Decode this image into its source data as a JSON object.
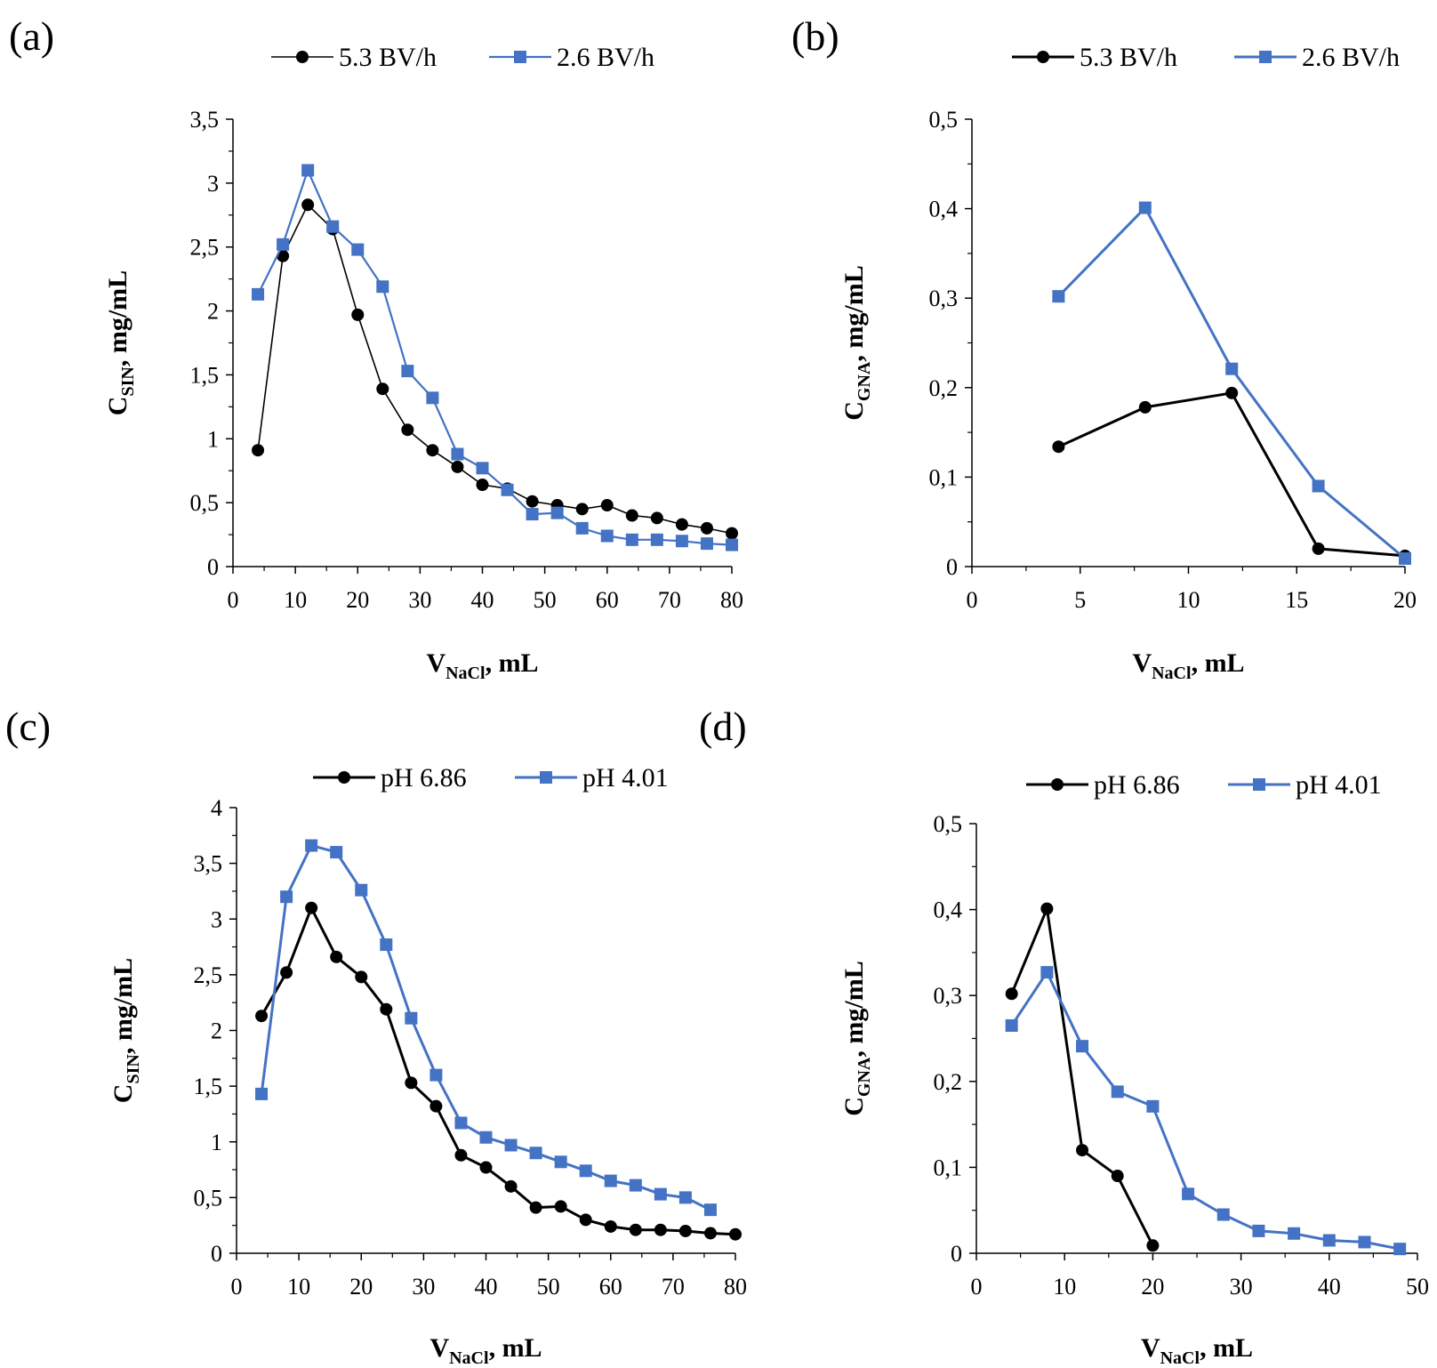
{
  "chart_data": [
    {
      "id": "a",
      "type": "line",
      "panel_label": "(a)",
      "xlabel": "V",
      "xlabel_sub": "NaCl",
      "xlabel_suffix": ", mL",
      "ylabel": "C",
      "ylabel_sub": "SIN",
      "ylabel_suffix": ", mg/mL",
      "xlim": [
        0,
        80
      ],
      "ylim": [
        0,
        3.5
      ],
      "xticks": [
        0,
        10,
        20,
        30,
        40,
        50,
        60,
        70,
        80
      ],
      "xtick_labels": [
        "0",
        "10",
        "20",
        "30",
        "40",
        "50",
        "60",
        "70",
        "80"
      ],
      "yticks": [
        0,
        0.5,
        1,
        1.5,
        2,
        2.5,
        3,
        3.5
      ],
      "ytick_labels": [
        "0",
        "0,5",
        "1",
        "1,5",
        "2",
        "2,5",
        "3",
        "3,5"
      ],
      "legend_position": "top",
      "series": [
        {
          "name": "5.3 BV/h",
          "color": "#000000",
          "marker": "circle",
          "x": [
            4,
            8,
            12,
            16,
            20,
            24,
            28,
            32,
            36,
            40,
            44,
            48,
            52,
            56,
            60,
            64,
            68,
            72,
            76,
            80
          ],
          "y": [
            0.91,
            2.43,
            2.83,
            2.64,
            1.97,
            1.39,
            1.07,
            0.91,
            0.78,
            0.64,
            0.61,
            0.51,
            0.48,
            0.45,
            0.48,
            0.4,
            0.38,
            0.33,
            0.3,
            0.26
          ]
        },
        {
          "name": "2.6 BV/h",
          "color": "#4472c4",
          "marker": "square",
          "x": [
            4,
            8,
            12,
            16,
            20,
            24,
            28,
            32,
            36,
            40,
            44,
            48,
            52,
            56,
            60,
            64,
            68,
            72,
            76,
            80
          ],
          "y": [
            2.13,
            2.52,
            3.1,
            2.66,
            2.48,
            2.19,
            1.53,
            1.32,
            0.88,
            0.77,
            0.6,
            0.41,
            0.42,
            0.3,
            0.24,
            0.21,
            0.21,
            0.2,
            0.18,
            0.17
          ]
        }
      ]
    },
    {
      "id": "b",
      "type": "line",
      "panel_label": "(b)",
      "xlabel": "V",
      "xlabel_sub": "NaCl",
      "xlabel_suffix": ", mL",
      "ylabel": "C",
      "ylabel_sub": "GNA",
      "ylabel_suffix": ", mg/mL",
      "xlim": [
        0,
        20
      ],
      "ylim": [
        0,
        0.5
      ],
      "xticks": [
        0,
        5,
        10,
        15,
        20
      ],
      "xtick_labels": [
        "0",
        "5",
        "10",
        "15",
        "20"
      ],
      "yticks": [
        0,
        0.1,
        0.2,
        0.3,
        0.4,
        0.5
      ],
      "ytick_labels": [
        "0",
        "0,1",
        "0,2",
        "0,3",
        "0,4",
        "0,5"
      ],
      "legend_position": "top",
      "series": [
        {
          "name": "5.3 BV/h",
          "color": "#000000",
          "marker": "circle",
          "x": [
            4,
            8,
            12,
            16,
            20
          ],
          "y": [
            0.134,
            0.178,
            0.194,
            0.02,
            0.012
          ]
        },
        {
          "name": "2.6 BV/h",
          "color": "#4472c4",
          "marker": "square",
          "x": [
            4,
            8,
            12,
            16,
            20
          ],
          "y": [
            0.302,
            0.401,
            0.221,
            0.09,
            0.009
          ]
        }
      ]
    },
    {
      "id": "c",
      "type": "line",
      "panel_label": "(c)",
      "xlabel": "V",
      "xlabel_sub": "NaCl",
      "xlabel_suffix": ", mL",
      "ylabel": "C",
      "ylabel_sub": "SIN",
      "ylabel_suffix": ", mg/mL",
      "xlim": [
        0,
        80
      ],
      "ylim": [
        0,
        4
      ],
      "xticks": [
        0,
        10,
        20,
        30,
        40,
        50,
        60,
        70,
        80
      ],
      "xtick_labels": [
        "0",
        "10",
        "20",
        "30",
        "40",
        "50",
        "60",
        "70",
        "80"
      ],
      "yticks": [
        0,
        0.5,
        1,
        1.5,
        2,
        2.5,
        3,
        3.5,
        4
      ],
      "ytick_labels": [
        "0",
        "0,5",
        "1",
        "1,5",
        "2",
        "2,5",
        "3",
        "3,5",
        "4"
      ],
      "legend_position": "top",
      "series": [
        {
          "name": "pH 6.86",
          "color": "#000000",
          "marker": "circle",
          "x": [
            4,
            8,
            12,
            16,
            20,
            24,
            28,
            32,
            36,
            40,
            44,
            48,
            52,
            56,
            60,
            64,
            68,
            72,
            76,
            80
          ],
          "y": [
            2.13,
            2.52,
            3.1,
            2.66,
            2.48,
            2.19,
            1.53,
            1.32,
            0.88,
            0.77,
            0.6,
            0.41,
            0.42,
            0.3,
            0.24,
            0.21,
            0.21,
            0.2,
            0.18,
            0.17
          ]
        },
        {
          "name": "pH 4.01",
          "color": "#4472c4",
          "marker": "square",
          "x": [
            4,
            8,
            12,
            16,
            20,
            24,
            28,
            32,
            36,
            40,
            44,
            48,
            52,
            56,
            60,
            64,
            68,
            72,
            76
          ],
          "y": [
            1.43,
            3.2,
            3.66,
            3.6,
            3.26,
            2.77,
            2.11,
            1.6,
            1.17,
            1.04,
            0.97,
            0.9,
            0.82,
            0.74,
            0.65,
            0.61,
            0.53,
            0.5,
            0.39
          ]
        }
      ]
    },
    {
      "id": "d",
      "type": "line",
      "panel_label": "(d)",
      "xlabel": "V",
      "xlabel_sub": "NaCl",
      "xlabel_suffix": ", mL",
      "ylabel": "C",
      "ylabel_sub": "GNA",
      "ylabel_suffix": ", mg/mL",
      "xlim": [
        0,
        50
      ],
      "ylim": [
        0,
        0.5
      ],
      "xticks": [
        0,
        10,
        20,
        30,
        40,
        50
      ],
      "xtick_labels": [
        "0",
        "10",
        "20",
        "30",
        "40",
        "50"
      ],
      "yticks": [
        0,
        0.1,
        0.2,
        0.3,
        0.4,
        0.5
      ],
      "ytick_labels": [
        "0",
        "0,1",
        "0,2",
        "0,3",
        "0,4",
        "0,5"
      ],
      "legend_position": "top",
      "series": [
        {
          "name": "pH 6.86",
          "color": "#000000",
          "marker": "circle",
          "x": [
            4,
            8,
            12,
            16,
            20
          ],
          "y": [
            0.302,
            0.401,
            0.12,
            0.09,
            0.009
          ]
        },
        {
          "name": "pH 4.01",
          "color": "#4472c4",
          "marker": "square",
          "x": [
            4,
            8,
            12,
            16,
            20,
            24,
            28,
            32,
            36,
            40,
            44,
            48
          ],
          "y": [
            0.265,
            0.327,
            0.241,
            0.188,
            0.171,
            0.069,
            0.045,
            0.026,
            0.023,
            0.015,
            0.013,
            0.005
          ]
        }
      ]
    }
  ]
}
